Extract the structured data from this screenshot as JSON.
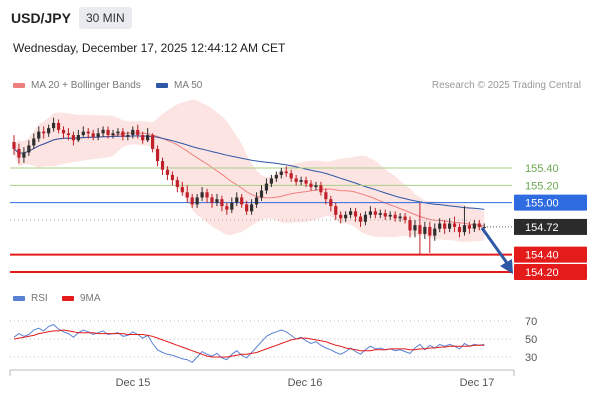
{
  "header": {
    "symbol": "USD/JPY",
    "interval": "30 MIN",
    "datetime": "Wednesday, December 17, 2025 12:44:12 AM CET",
    "research": "Research © 2025 Trading Central"
  },
  "colors": {
    "candle_up": "#2e2e2e",
    "candle_down": "#c0202a",
    "ma20": "#f08080",
    "bollinger_fill": "#fbd9d6",
    "ma50": "#2e57a6",
    "support": "#e31b1b",
    "resistance": "#a9cf86",
    "pivot": "#2f6be0",
    "last_price": "#2b2b2b",
    "rsi": "#5a82d4",
    "rsi_ma": "#e31b1b"
  },
  "chart_data": [
    {
      "type": "candlestick",
      "legend": [
        "MA 20 + Bollinger Bands",
        "MA 50"
      ],
      "x_ticks": [
        "Dec 15",
        "Dec 16",
        "Dec 17"
      ],
      "last_price": "154.72",
      "levels": [
        {
          "value": 155.4,
          "label": "155.40",
          "kind": "resistance"
        },
        {
          "value": 155.2,
          "label": "155.20",
          "kind": "resistance"
        },
        {
          "value": 155.0,
          "label": "155.00",
          "kind": "pivot"
        },
        {
          "value": 154.4,
          "label": "154.40",
          "kind": "support"
        },
        {
          "value": 154.2,
          "label": "154.20",
          "kind": "support"
        }
      ],
      "candles": [
        [
          155.7,
          155.62,
          155.78,
          155.55
        ],
        [
          155.62,
          155.52,
          155.68,
          155.45
        ],
        [
          155.52,
          155.58,
          155.64,
          155.46
        ],
        [
          155.58,
          155.66,
          155.72,
          155.54
        ],
        [
          155.66,
          155.74,
          155.8,
          155.62
        ],
        [
          155.74,
          155.82,
          155.88,
          155.7
        ],
        [
          155.82,
          155.8,
          155.88,
          155.74
        ],
        [
          155.8,
          155.86,
          155.9,
          155.76
        ],
        [
          155.86,
          155.92,
          155.98,
          155.82
        ],
        [
          155.92,
          155.84,
          155.96,
          155.8
        ],
        [
          155.84,
          155.8,
          155.88,
          155.74
        ],
        [
          155.8,
          155.78,
          155.86,
          155.72
        ],
        [
          155.78,
          155.72,
          155.82,
          155.66
        ],
        [
          155.72,
          155.78,
          155.84,
          155.7
        ],
        [
          155.78,
          155.82,
          155.88,
          155.76
        ],
        [
          155.82,
          155.8,
          155.86,
          155.74
        ],
        [
          155.8,
          155.76,
          155.84,
          155.72
        ],
        [
          155.76,
          155.8,
          155.86,
          155.72
        ],
        [
          155.8,
          155.84,
          155.88,
          155.76
        ],
        [
          155.84,
          155.78,
          155.88,
          155.74
        ],
        [
          155.78,
          155.8,
          155.84,
          155.74
        ],
        [
          155.8,
          155.82,
          155.86,
          155.76
        ],
        [
          155.82,
          155.76,
          155.86,
          155.72
        ],
        [
          155.76,
          155.78,
          155.82,
          155.72
        ],
        [
          155.78,
          155.84,
          155.88,
          155.74
        ],
        [
          155.84,
          155.78,
          155.9,
          155.74
        ],
        [
          155.78,
          155.72,
          155.82,
          155.68
        ],
        [
          155.72,
          155.78,
          155.86,
          155.7
        ],
        [
          155.78,
          155.62,
          155.8,
          155.58
        ],
        [
          155.62,
          155.48,
          155.66,
          155.42
        ],
        [
          155.48,
          155.38,
          155.52,
          155.32
        ],
        [
          155.38,
          155.32,
          155.42,
          155.26
        ],
        [
          155.32,
          155.26,
          155.36,
          155.2
        ],
        [
          155.26,
          155.18,
          155.3,
          155.12
        ],
        [
          155.18,
          155.12,
          155.24,
          155.08
        ],
        [
          155.12,
          155.06,
          155.2,
          155.0
        ],
        [
          155.06,
          154.98,
          155.1,
          154.94
        ],
        [
          154.98,
          155.06,
          155.1,
          154.94
        ],
        [
          155.06,
          155.12,
          155.18,
          155.02
        ],
        [
          155.12,
          155.06,
          155.16,
          155.0
        ],
        [
          155.06,
          155.0,
          155.1,
          154.94
        ],
        [
          155.0,
          155.04,
          155.1,
          154.96
        ],
        [
          155.04,
          154.96,
          155.08,
          154.9
        ],
        [
          154.96,
          154.92,
          155.0,
          154.86
        ],
        [
          154.92,
          155.0,
          155.06,
          154.88
        ],
        [
          155.0,
          155.06,
          155.12,
          154.96
        ],
        [
          155.06,
          154.98,
          155.1,
          154.94
        ],
        [
          154.98,
          154.9,
          155.02,
          154.86
        ],
        [
          154.9,
          154.98,
          155.04,
          154.86
        ],
        [
          154.98,
          155.06,
          155.12,
          154.94
        ],
        [
          155.06,
          155.14,
          155.2,
          155.02
        ],
        [
          155.14,
          155.22,
          155.28,
          155.1
        ],
        [
          155.22,
          155.28,
          155.32,
          155.18
        ],
        [
          155.28,
          155.32,
          155.36,
          155.24
        ],
        [
          155.32,
          155.36,
          155.4,
          155.28
        ],
        [
          155.36,
          155.34,
          155.42,
          155.3
        ],
        [
          155.34,
          155.28,
          155.38,
          155.24
        ],
        [
          155.28,
          155.24,
          155.32,
          155.2
        ],
        [
          155.24,
          155.26,
          155.3,
          155.2
        ],
        [
          155.26,
          155.22,
          155.3,
          155.18
        ],
        [
          155.22,
          155.18,
          155.26,
          155.14
        ],
        [
          155.18,
          155.2,
          155.24,
          155.14
        ],
        [
          155.2,
          155.12,
          155.24,
          155.08
        ],
        [
          155.12,
          155.04,
          155.16,
          154.98
        ],
        [
          155.04,
          154.96,
          155.08,
          154.9
        ],
        [
          154.96,
          154.86,
          155.0,
          154.8
        ],
        [
          154.86,
          154.82,
          154.9,
          154.76
        ],
        [
          154.82,
          154.86,
          154.9,
          154.78
        ],
        [
          154.86,
          154.9,
          154.94,
          154.82
        ],
        [
          154.9,
          154.84,
          154.94,
          154.78
        ],
        [
          154.84,
          154.78,
          154.88,
          154.72
        ],
        [
          154.78,
          154.86,
          154.9,
          154.74
        ],
        [
          154.86,
          154.9,
          154.96,
          154.82
        ],
        [
          154.9,
          154.86,
          154.94,
          154.82
        ],
        [
          154.86,
          154.88,
          154.92,
          154.82
        ],
        [
          154.88,
          154.84,
          154.92,
          154.8
        ],
        [
          154.84,
          154.86,
          154.9,
          154.8
        ],
        [
          154.86,
          154.82,
          154.9,
          154.78
        ],
        [
          154.82,
          154.84,
          154.88,
          154.78
        ],
        [
          154.84,
          154.8,
          154.88,
          154.76
        ],
        [
          154.8,
          154.68,
          154.84,
          154.6
        ],
        [
          154.68,
          154.74,
          154.8,
          154.6
        ],
        [
          154.74,
          154.64,
          155.0,
          154.4
        ],
        [
          154.64,
          154.72,
          154.78,
          154.58
        ],
        [
          154.72,
          154.62,
          154.78,
          154.42
        ],
        [
          154.62,
          154.7,
          154.76,
          154.56
        ],
        [
          154.7,
          154.76,
          154.82,
          154.66
        ],
        [
          154.76,
          154.7,
          154.8,
          154.64
        ],
        [
          154.7,
          154.76,
          154.82,
          154.66
        ],
        [
          154.76,
          154.72,
          154.84,
          154.66
        ],
        [
          154.72,
          154.66,
          154.76,
          154.6
        ],
        [
          154.66,
          154.74,
          154.96,
          154.62
        ],
        [
          154.74,
          154.7,
          154.78,
          154.64
        ],
        [
          154.7,
          154.76,
          154.8,
          154.66
        ],
        [
          154.76,
          154.72,
          154.8,
          154.68
        ],
        [
          154.72,
          154.72,
          154.76,
          154.68
        ]
      ]
    },
    {
      "type": "line",
      "title": "RSI",
      "series": [
        {
          "name": "RSI"
        },
        {
          "name": "9MA"
        }
      ],
      "y_ticks": [
        70,
        50,
        30
      ],
      "ylim": [
        20,
        78
      ],
      "rsi": [
        52,
        56,
        53,
        55,
        60,
        62,
        59,
        64,
        66,
        61,
        58,
        56,
        52,
        57,
        60,
        58,
        55,
        57,
        59,
        55,
        56,
        57,
        53,
        54,
        58,
        55,
        51,
        54,
        45,
        38,
        35,
        33,
        32,
        30,
        28,
        27,
        24,
        30,
        36,
        33,
        31,
        34,
        29,
        27,
        33,
        37,
        32,
        29,
        35,
        41,
        47,
        53,
        56,
        58,
        60,
        58,
        54,
        50,
        52,
        48,
        45,
        47,
        43,
        40,
        38,
        35,
        33,
        36,
        40,
        36,
        33,
        38,
        42,
        39,
        40,
        38,
        39,
        37,
        38,
        36,
        34,
        40,
        44,
        38,
        43,
        40,
        44,
        42,
        44,
        42,
        39,
        45,
        42,
        44,
        43,
        44
      ],
      "rsi_ma": [
        50,
        51,
        52,
        53,
        54,
        56,
        57,
        58,
        59,
        59,
        60,
        59,
        58,
        57,
        57,
        57,
        57,
        56,
        56,
        56,
        56,
        56,
        56,
        55,
        55,
        55,
        55,
        54,
        53,
        51,
        49,
        47,
        45,
        43,
        41,
        39,
        37,
        35,
        33,
        31,
        30,
        30,
        30,
        30,
        31,
        32,
        33,
        33,
        34,
        35,
        37,
        39,
        41,
        43,
        45,
        47,
        49,
        50,
        51,
        51,
        50,
        49,
        48,
        47,
        45,
        43,
        42,
        40,
        39,
        38,
        37,
        37,
        37,
        38,
        38,
        38,
        39,
        39,
        39,
        39,
        38,
        38,
        39,
        39,
        40,
        40,
        41,
        41,
        42,
        42,
        42,
        42,
        42,
        43,
        43,
        43
      ]
    }
  ]
}
